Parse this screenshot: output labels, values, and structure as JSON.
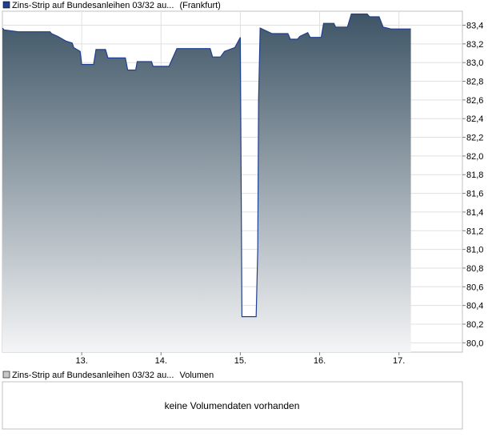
{
  "price_chart": {
    "legend_label": "Zins-Strip auf Bundesanleihen 03/32 au...",
    "exchange_label": "(Frankfurt)",
    "series_color": "#1f3f8f",
    "area_top_color": "#3e5566",
    "area_bottom_color": "#f4f5f6"
  },
  "volume_chart": {
    "legend_label": "Zins-Strip auf Bundesanleihen 03/32 au...",
    "volume_label": "Volumen",
    "empty_message": "keine Volumendaten vorhanden"
  },
  "chart_data": [
    {
      "type": "area",
      "title": "",
      "xlabel": "",
      "ylabel": "",
      "x_tick_labels": [
        "13.",
        "14.",
        "15.",
        "16.",
        "17."
      ],
      "x_tick_days": [
        13,
        14,
        15,
        16,
        17
      ],
      "xlim": [
        12,
        17.8
      ],
      "y_tick_labels": [
        "80,0",
        "80,2",
        "80,4",
        "80,6",
        "80,8",
        "81,0",
        "81,2",
        "81,4",
        "81,6",
        "81,8",
        "82,0",
        "82,2",
        "82,4",
        "82,6",
        "82,8",
        "83,0",
        "83,2",
        "83,4"
      ],
      "y_ticks": [
        80.0,
        80.2,
        80.4,
        80.6,
        80.8,
        81.0,
        81.2,
        81.4,
        81.6,
        81.8,
        82.0,
        82.2,
        82.4,
        82.6,
        82.8,
        83.0,
        83.2,
        83.4
      ],
      "ylim": [
        79.9,
        83.55
      ],
      "grid": true,
      "y_axis_position": "right",
      "series": [
        {
          "x": [
            12.0,
            12.02,
            12.2,
            12.6,
            12.62,
            12.7,
            12.8,
            12.88,
            12.9,
            12.98,
            13.0,
            13.15,
            13.18,
            13.3,
            13.33,
            13.55,
            13.58,
            13.68,
            13.7,
            13.88,
            13.9,
            14.1,
            14.2,
            14.62,
            14.65,
            14.75,
            14.8,
            14.93,
            15.0,
            15.02,
            15.03,
            15.05,
            15.2,
            15.22,
            15.23,
            15.25,
            15.4,
            15.6,
            15.63,
            15.72,
            15.75,
            15.85,
            15.88,
            16.02,
            16.05,
            16.18,
            16.2,
            16.35,
            16.4,
            16.6,
            16.63,
            16.75,
            16.8,
            16.9,
            16.93,
            17.15
          ],
          "y": [
            83.37,
            83.35,
            83.33,
            83.33,
            83.31,
            83.28,
            83.23,
            83.21,
            83.16,
            83.12,
            82.98,
            82.98,
            83.14,
            83.14,
            83.05,
            83.05,
            82.92,
            82.92,
            83.01,
            83.01,
            82.96,
            82.96,
            83.15,
            83.15,
            83.06,
            83.06,
            83.12,
            83.16,
            83.27,
            80.28,
            80.28,
            80.28,
            80.28,
            81.0,
            82.6,
            83.37,
            83.31,
            83.31,
            83.25,
            83.25,
            83.28,
            83.32,
            83.27,
            83.27,
            83.42,
            83.42,
            83.38,
            83.38,
            83.52,
            83.52,
            83.49,
            83.49,
            83.38,
            83.36,
            83.36,
            83.36
          ]
        }
      ]
    },
    {
      "type": "bar",
      "title": "",
      "series": [],
      "empty_message_ref": "volume_chart.empty_message"
    }
  ]
}
